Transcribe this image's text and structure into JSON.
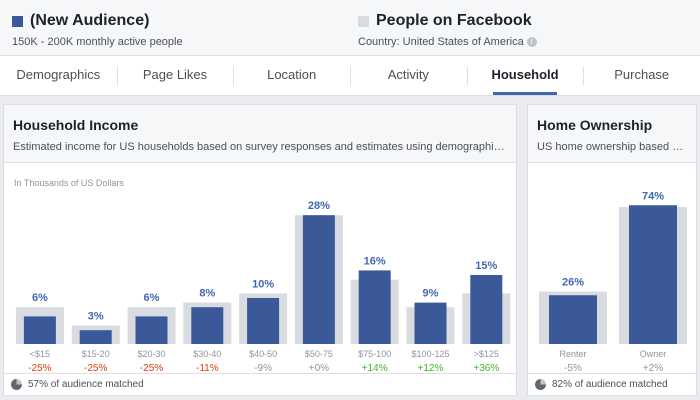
{
  "header": {
    "audience": {
      "title": "(New Audience)",
      "subtitle": "150K - 200K monthly active people",
      "color": "#3b5998"
    },
    "comparison": {
      "title": "People on Facebook",
      "subtitle": "Country: United States of America",
      "color": "#d8dbdf"
    }
  },
  "tabs": [
    {
      "label": "Demographics",
      "active": false
    },
    {
      "label": "Page Likes",
      "active": false
    },
    {
      "label": "Location",
      "active": false
    },
    {
      "label": "Activity",
      "active": false
    },
    {
      "label": "Household",
      "active": true
    },
    {
      "label": "Purchase",
      "active": false
    }
  ],
  "income": {
    "title": "Household Income",
    "description": "Estimated income for US households based on survey responses and estimates using demographic dat...",
    "footer": "57% of audience matched",
    "chart_data": {
      "type": "bar",
      "ylabel": "In Thousands of US Dollars",
      "categories": [
        "<$15",
        "$15-20",
        "$20-30",
        "$30-40",
        "$40-50",
        "$50-75",
        "$75-100",
        "$100-125",
        ">$125"
      ],
      "series": [
        {
          "values": [
            6,
            3,
            6,
            8,
            10,
            28,
            16,
            9,
            15
          ],
          "color": "#3b5998"
        },
        {
          "values": [
            8,
            4,
            8,
            9,
            11,
            28,
            14,
            8,
            11
          ],
          "color": "#d8dbdf"
        }
      ],
      "value_labels": [
        "6%",
        "3%",
        "6%",
        "8%",
        "10%",
        "28%",
        "16%",
        "9%",
        "15%"
      ],
      "diff_labels": [
        "-25%",
        "-25%",
        "-25%",
        "-11%",
        "-9%",
        "+0%",
        "+14%",
        "+12%",
        "+36%"
      ],
      "ylim": [
        0,
        30
      ]
    }
  },
  "home": {
    "title": "Home Ownership",
    "description": "US home ownership based o...",
    "footer": "82% of audience matched",
    "chart_data": {
      "type": "bar",
      "categories": [
        "Renter",
        "Owner"
      ],
      "series": [
        {
          "values": [
            26,
            74
          ],
          "color": "#3b5998"
        },
        {
          "values": [
            28,
            73
          ],
          "color": "#d8dbdf"
        }
      ],
      "value_labels": [
        "26%",
        "74%"
      ],
      "diff_labels": [
        "-5%",
        "+2%"
      ],
      "ylim": [
        0,
        80
      ]
    }
  },
  "colors": {
    "accent": "#4267b2",
    "bar": "#3b5998",
    "baseline": "#d8dbdf",
    "negative": "#dd3c10",
    "positive": "#42b72a",
    "neutral": "#90949c",
    "label": "#4267b2"
  }
}
